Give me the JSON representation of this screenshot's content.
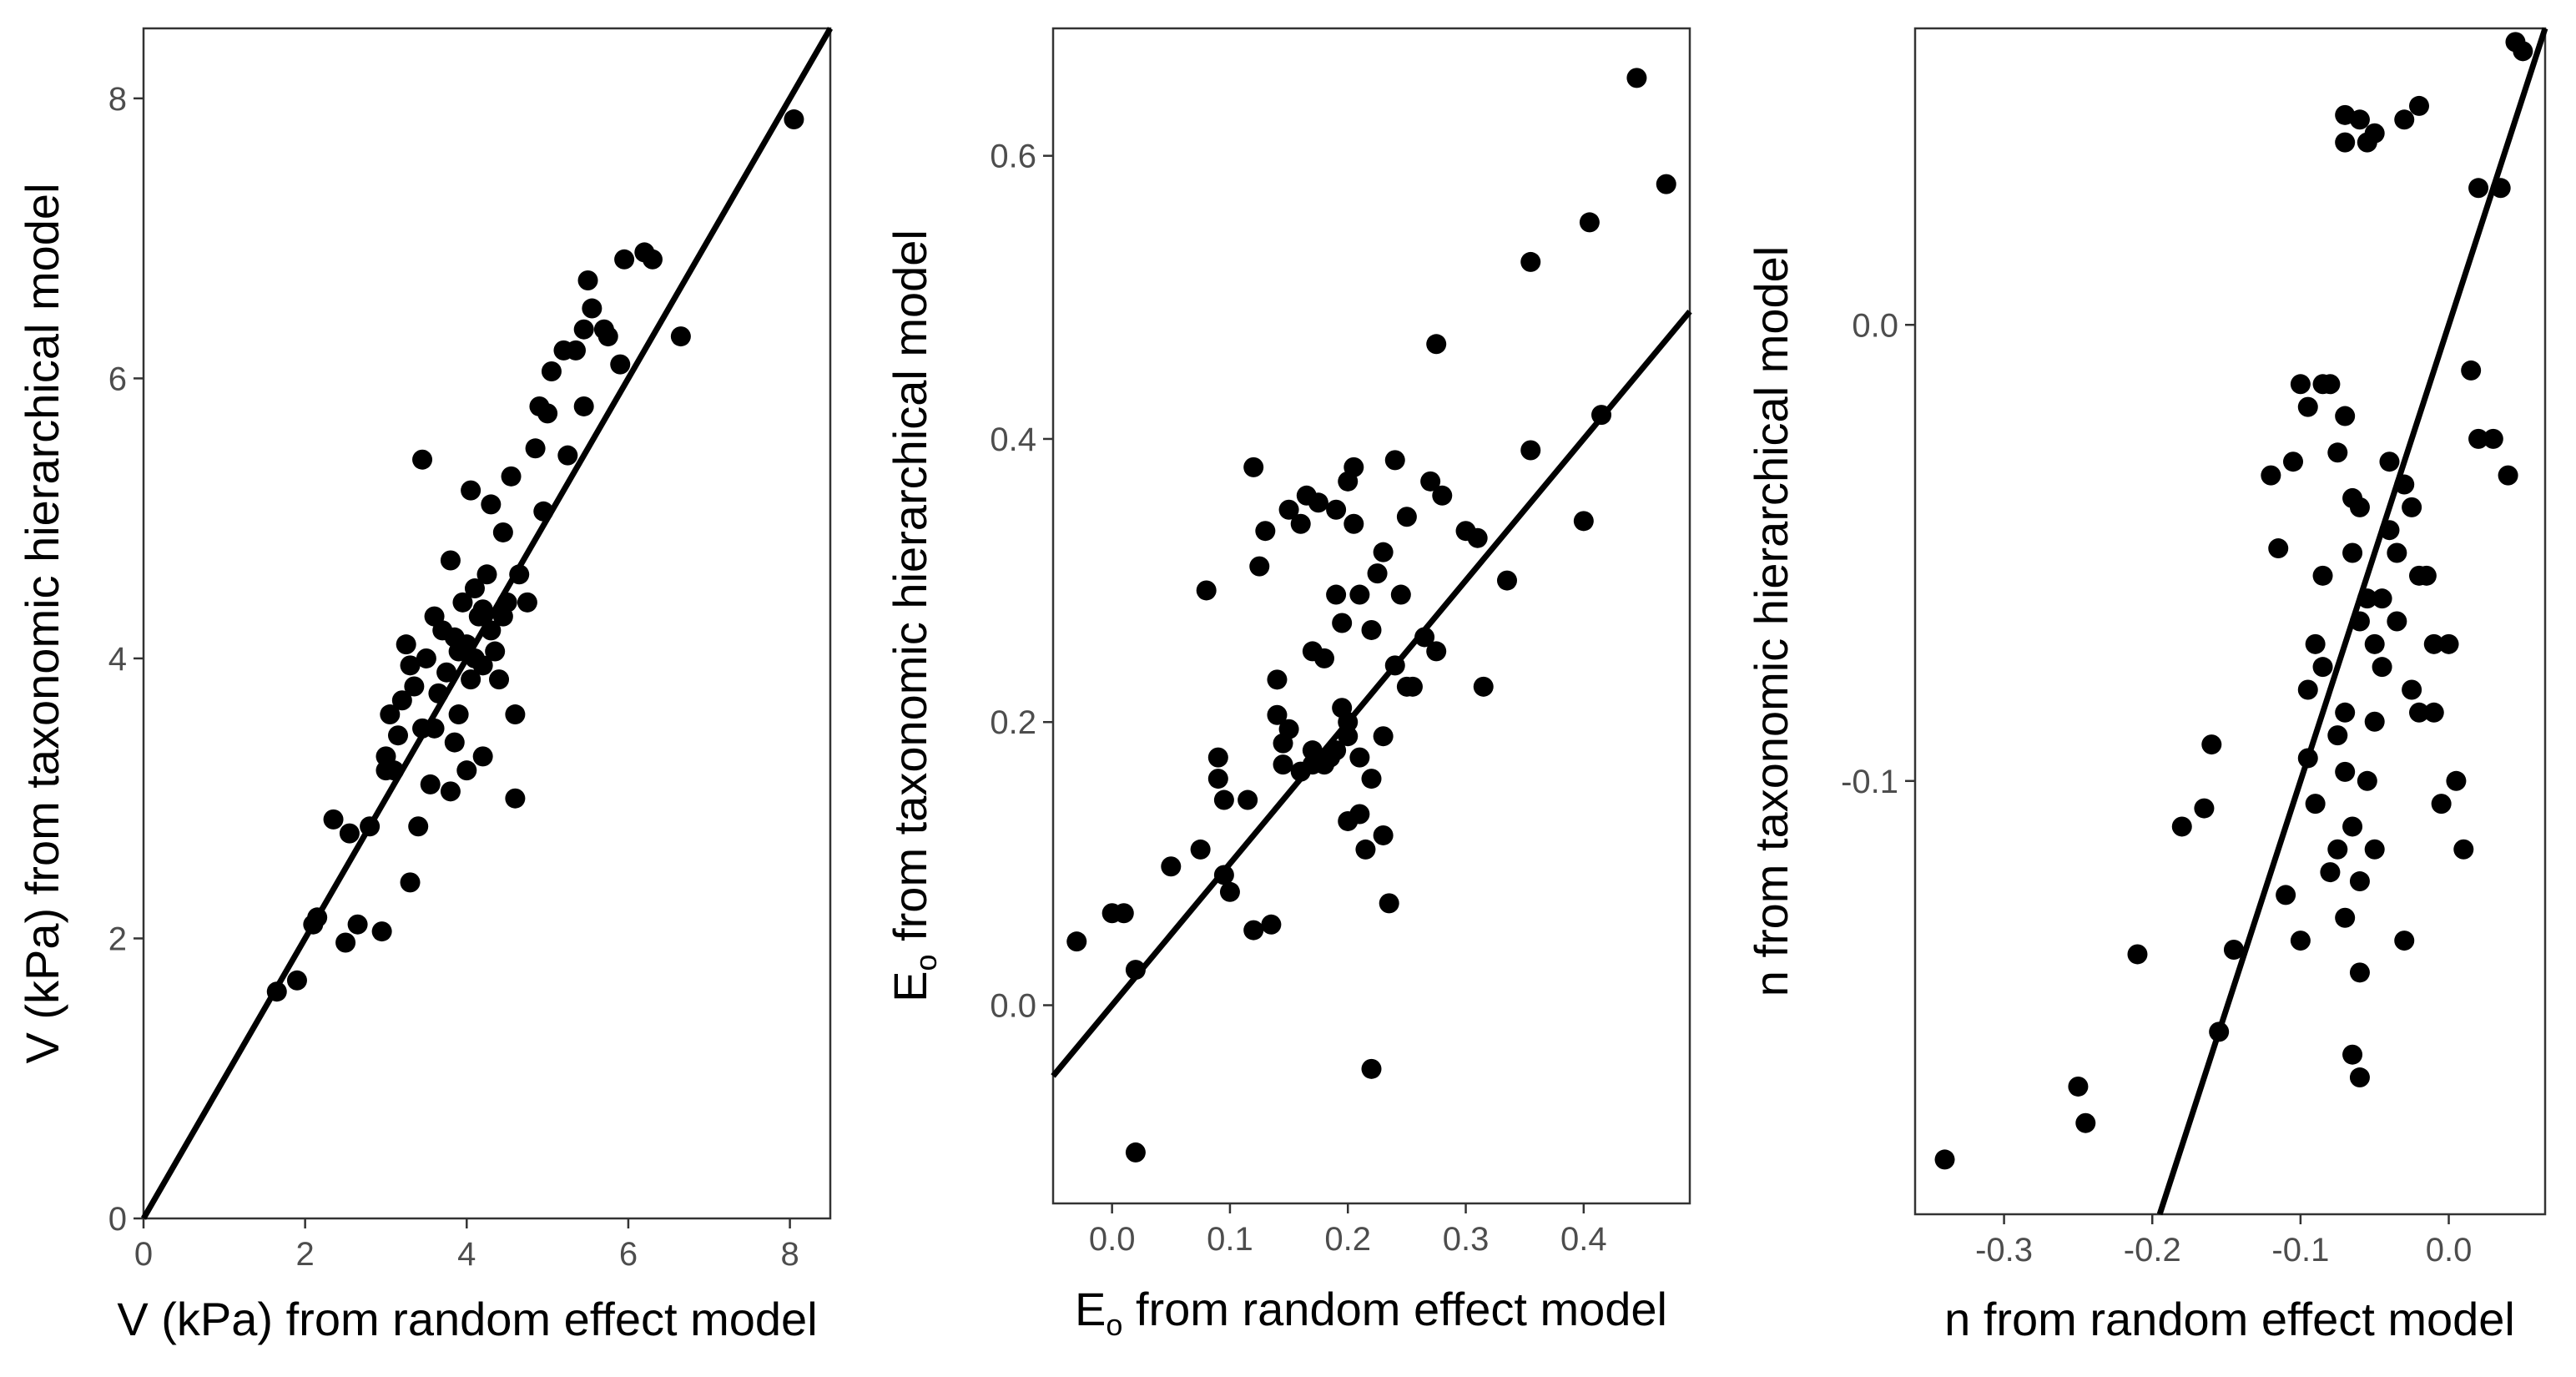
{
  "chart_data": [
    {
      "type": "scatter",
      "title": "",
      "xlabel": "V (kPa) from random effect model",
      "ylabel": "V (kPa) from taxonomic hierarchical model",
      "xlim": [
        0,
        8.5
      ],
      "ylim": [
        0,
        8.5
      ],
      "xticks": [
        0,
        2,
        4,
        6,
        8
      ],
      "xtick_labels": [
        "0",
        "2",
        "4",
        "6",
        "8"
      ],
      "yticks": [
        0,
        2,
        4,
        6,
        8
      ],
      "ytick_labels": [
        "0",
        "2",
        "4",
        "6",
        "8"
      ],
      "grid": false,
      "legend": "none",
      "line": {
        "slope": 1.0,
        "intercept": 0.0
      },
      "points": [
        [
          1.65,
          1.62
        ],
        [
          1.9,
          1.7
        ],
        [
          2.1,
          2.1
        ],
        [
          2.15,
          2.15
        ],
        [
          2.35,
          2.85
        ],
        [
          2.5,
          1.97
        ],
        [
          2.55,
          2.75
        ],
        [
          2.65,
          2.1
        ],
        [
          2.8,
          2.8
        ],
        [
          2.95,
          2.05
        ],
        [
          3.0,
          3.3
        ],
        [
          3.05,
          3.6
        ],
        [
          3.1,
          3.2
        ],
        [
          3.15,
          3.45
        ],
        [
          3.2,
          3.7
        ],
        [
          3.25,
          4.1
        ],
        [
          3.3,
          3.95
        ],
        [
          3.3,
          2.4
        ],
        [
          3.35,
          3.8
        ],
        [
          3.4,
          2.8
        ],
        [
          3.45,
          3.5
        ],
        [
          3.45,
          5.42
        ],
        [
          3.5,
          4.0
        ],
        [
          3.55,
          3.1
        ],
        [
          3.6,
          4.3
        ],
        [
          3.65,
          3.75
        ],
        [
          3.7,
          4.2
        ],
        [
          3.75,
          3.9
        ],
        [
          3.8,
          3.05
        ],
        [
          3.8,
          4.7
        ],
        [
          3.85,
          3.4
        ],
        [
          3.9,
          4.05
        ],
        [
          3.9,
          3.6
        ],
        [
          3.95,
          4.4
        ],
        [
          4.0,
          3.2
        ],
        [
          4.0,
          4.1
        ],
        [
          4.05,
          5.2
        ],
        [
          4.05,
          3.85
        ],
        [
          4.1,
          4.5
        ],
        [
          4.1,
          4.0
        ],
        [
          4.15,
          4.3
        ],
        [
          4.2,
          3.3
        ],
        [
          4.2,
          3.95
        ],
        [
          4.25,
          4.6
        ],
        [
          4.3,
          5.1
        ],
        [
          4.3,
          4.2
        ],
        [
          4.35,
          4.05
        ],
        [
          4.4,
          3.85
        ],
        [
          4.45,
          4.9
        ],
        [
          4.5,
          4.4
        ],
        [
          4.55,
          5.3
        ],
        [
          4.6,
          3.0
        ],
        [
          4.6,
          3.6
        ],
        [
          4.65,
          4.6
        ],
        [
          4.75,
          4.4
        ],
        [
          4.85,
          5.5
        ],
        [
          4.9,
          5.8
        ],
        [
          4.95,
          5.05
        ],
        [
          5.0,
          5.75
        ],
        [
          5.05,
          6.05
        ],
        [
          5.2,
          6.2
        ],
        [
          5.25,
          5.45
        ],
        [
          5.35,
          6.2
        ],
        [
          5.45,
          6.35
        ],
        [
          5.45,
          5.8
        ],
        [
          5.5,
          6.7
        ],
        [
          5.55,
          6.5
        ],
        [
          5.7,
          6.35
        ],
        [
          5.75,
          6.3
        ],
        [
          5.9,
          6.1
        ],
        [
          5.95,
          6.85
        ],
        [
          6.2,
          6.9
        ],
        [
          6.3,
          6.85
        ],
        [
          6.65,
          6.3
        ],
        [
          8.05,
          7.85
        ],
        [
          3.0,
          3.2
        ],
        [
          3.6,
          3.5
        ],
        [
          4.2,
          4.35
        ],
        [
          3.85,
          4.15
        ],
        [
          4.45,
          4.3
        ]
      ]
    },
    {
      "type": "scatter",
      "title": "",
      "xlabel_main": "E",
      "xlabel_sub": "o",
      "xlabel_rest": " from random effect model",
      "ylabel_main": "E",
      "ylabel_sub": "o",
      "ylabel_rest": " from taxonomic hierarchical model",
      "xlim": [
        -0.05,
        0.49
      ],
      "ylim": [
        -0.14,
        0.69
      ],
      "xticks": [
        0.0,
        0.1,
        0.2,
        0.3,
        0.4
      ],
      "xtick_labels": [
        "0.0",
        "0.1",
        "0.2",
        "0.3",
        "0.4"
      ],
      "yticks": [
        0.0,
        0.2,
        0.4,
        0.6
      ],
      "ytick_labels": [
        "0.0",
        "0.2",
        "0.4",
        "0.6"
      ],
      "grid": false,
      "legend": "none",
      "line": {
        "slope": 1.0,
        "intercept": 0.0
      },
      "points": [
        [
          -0.03,
          0.045
        ],
        [
          0.0,
          0.065
        ],
        [
          0.01,
          0.065
        ],
        [
          0.02,
          0.025
        ],
        [
          0.02,
          -0.104
        ],
        [
          0.05,
          0.098
        ],
        [
          0.075,
          0.11
        ],
        [
          0.08,
          0.293
        ],
        [
          0.09,
          0.175
        ],
        [
          0.09,
          0.16
        ],
        [
          0.095,
          0.145
        ],
        [
          0.095,
          0.092
        ],
        [
          0.1,
          0.08
        ],
        [
          0.115,
          0.145
        ],
        [
          0.12,
          0.053
        ],
        [
          0.12,
          0.38
        ],
        [
          0.125,
          0.31
        ],
        [
          0.13,
          0.335
        ],
        [
          0.135,
          0.057
        ],
        [
          0.14,
          0.23
        ],
        [
          0.14,
          0.205
        ],
        [
          0.145,
          0.185
        ],
        [
          0.145,
          0.17
        ],
        [
          0.15,
          0.35
        ],
        [
          0.15,
          0.195
        ],
        [
          0.16,
          0.34
        ],
        [
          0.165,
          0.36
        ],
        [
          0.17,
          0.25
        ],
        [
          0.17,
          0.18
        ],
        [
          0.175,
          0.355
        ],
        [
          0.18,
          0.245
        ],
        [
          0.18,
          0.17
        ],
        [
          0.185,
          0.175
        ],
        [
          0.19,
          0.35
        ],
        [
          0.19,
          0.29
        ],
        [
          0.195,
          0.27
        ],
        [
          0.195,
          0.21
        ],
        [
          0.2,
          0.37
        ],
        [
          0.2,
          0.19
        ],
        [
          0.205,
          0.38
        ],
        [
          0.205,
          0.34
        ],
        [
          0.2,
          0.13
        ],
        [
          0.21,
          0.29
        ],
        [
          0.215,
          0.11
        ],
        [
          0.22,
          -0.045
        ],
        [
          0.22,
          0.265
        ],
        [
          0.22,
          0.16
        ],
        [
          0.225,
          0.305
        ],
        [
          0.23,
          0.32
        ],
        [
          0.23,
          0.12
        ],
        [
          0.235,
          0.072
        ],
        [
          0.24,
          0.385
        ],
        [
          0.24,
          0.24
        ],
        [
          0.245,
          0.29
        ],
        [
          0.25,
          0.345
        ],
        [
          0.25,
          0.225
        ],
        [
          0.255,
          0.225
        ],
        [
          0.265,
          0.26
        ],
        [
          0.27,
          0.37
        ],
        [
          0.275,
          0.25
        ],
        [
          0.275,
          0.467
        ],
        [
          0.28,
          0.36
        ],
        [
          0.3,
          0.335
        ],
        [
          0.31,
          0.33
        ],
        [
          0.315,
          0.225
        ],
        [
          0.335,
          0.3
        ],
        [
          0.355,
          0.525
        ],
        [
          0.355,
          0.392
        ],
        [
          0.4,
          0.342
        ],
        [
          0.405,
          0.553
        ],
        [
          0.415,
          0.417
        ],
        [
          0.445,
          0.655
        ],
        [
          0.47,
          0.58
        ],
        [
          0.19,
          0.18
        ],
        [
          0.2,
          0.2
        ],
        [
          0.21,
          0.175
        ],
        [
          0.23,
          0.19
        ],
        [
          0.17,
          0.17
        ],
        [
          0.16,
          0.165
        ],
        [
          0.21,
          0.135
        ]
      ]
    },
    {
      "type": "scatter",
      "title": "",
      "xlabel": "n from random effect model",
      "ylabel": "n from taxonomic hierarchical model",
      "xlim": [
        -0.36,
        0.065
      ],
      "ylim": [
        -0.195,
        0.065
      ],
      "xticks": [
        -0.3,
        -0.2,
        -0.1,
        0.0
      ],
      "xtick_labels": [
        "-0.3",
        "-0.2",
        "-0.1",
        "0.0"
      ],
      "yticks": [
        0.0,
        -0.1
      ],
      "ytick_labels": [
        "0.0",
        "-0.1"
      ],
      "grid": false,
      "legend": "none",
      "line": {
        "slope": 1.0,
        "intercept": 0.0
      },
      "points": [
        [
          -0.34,
          -0.183
        ],
        [
          -0.25,
          -0.167
        ],
        [
          -0.245,
          -0.175
        ],
        [
          -0.21,
          -0.138
        ],
        [
          -0.18,
          -0.11
        ],
        [
          -0.165,
          -0.106
        ],
        [
          -0.16,
          -0.092
        ],
        [
          -0.155,
          -0.155
        ],
        [
          -0.145,
          -0.137
        ],
        [
          -0.12,
          -0.033
        ],
        [
          -0.115,
          -0.049
        ],
        [
          -0.11,
          -0.125
        ],
        [
          -0.105,
          -0.03
        ],
        [
          -0.1,
          -0.135
        ],
        [
          -0.095,
          -0.095
        ],
        [
          -0.095,
          -0.08
        ],
        [
          -0.09,
          -0.105
        ],
        [
          -0.085,
          -0.075
        ],
        [
          -0.08,
          -0.12
        ],
        [
          -0.075,
          -0.115
        ],
        [
          -0.07,
          -0.085
        ],
        [
          -0.065,
          -0.05
        ],
        [
          -0.06,
          -0.04
        ],
        [
          -0.055,
          -0.06
        ],
        [
          -0.05,
          -0.07
        ],
        [
          -0.045,
          -0.06
        ],
        [
          -0.04,
          -0.045
        ],
        [
          -0.035,
          -0.065
        ],
        [
          -0.03,
          -0.135
        ],
        [
          -0.025,
          -0.08
        ],
        [
          -0.02,
          -0.055
        ],
        [
          -0.015,
          -0.055
        ],
        [
          -0.01,
          -0.07
        ],
        [
          -0.005,
          -0.105
        ],
        [
          0.0,
          -0.07
        ],
        [
          0.005,
          -0.1
        ],
        [
          0.01,
          -0.115
        ],
        [
          0.015,
          -0.01
        ],
        [
          0.02,
          -0.025
        ],
        [
          0.04,
          -0.033
        ],
        [
          0.045,
          0.062
        ],
        [
          0.05,
          0.06
        ],
        [
          0.03,
          -0.025
        ],
        [
          0.035,
          0.03
        ],
        [
          0.02,
          0.03
        ],
        [
          -0.07,
          0.046
        ],
        [
          -0.06,
          0.045
        ],
        [
          -0.05,
          0.042
        ],
        [
          -0.03,
          0.045
        ],
        [
          -0.02,
          0.048
        ],
        [
          -0.07,
          0.04
        ],
        [
          -0.055,
          0.04
        ],
        [
          -0.1,
          -0.013
        ],
        [
          -0.095,
          -0.018
        ],
        [
          -0.085,
          -0.013
        ],
        [
          -0.08,
          -0.013
        ],
        [
          -0.075,
          -0.028
        ],
        [
          -0.07,
          -0.02
        ],
        [
          -0.065,
          -0.038
        ],
        [
          -0.06,
          -0.065
        ],
        [
          -0.09,
          -0.07
        ],
        [
          -0.085,
          -0.055
        ],
        [
          -0.075,
          -0.09
        ],
        [
          -0.07,
          -0.098
        ],
        [
          -0.065,
          -0.11
        ],
        [
          -0.06,
          -0.122
        ],
        [
          -0.055,
          -0.1
        ],
        [
          -0.05,
          -0.115
        ],
        [
          -0.065,
          -0.16
        ],
        [
          -0.06,
          -0.165
        ],
        [
          -0.06,
          -0.142
        ],
        [
          -0.07,
          -0.13
        ],
        [
          -0.05,
          -0.087
        ],
        [
          -0.045,
          -0.075
        ],
        [
          -0.04,
          -0.03
        ],
        [
          -0.035,
          -0.05
        ],
        [
          -0.03,
          -0.035
        ],
        [
          -0.025,
          -0.04
        ],
        [
          -0.02,
          -0.085
        ],
        [
          -0.01,
          -0.085
        ]
      ]
    }
  ]
}
